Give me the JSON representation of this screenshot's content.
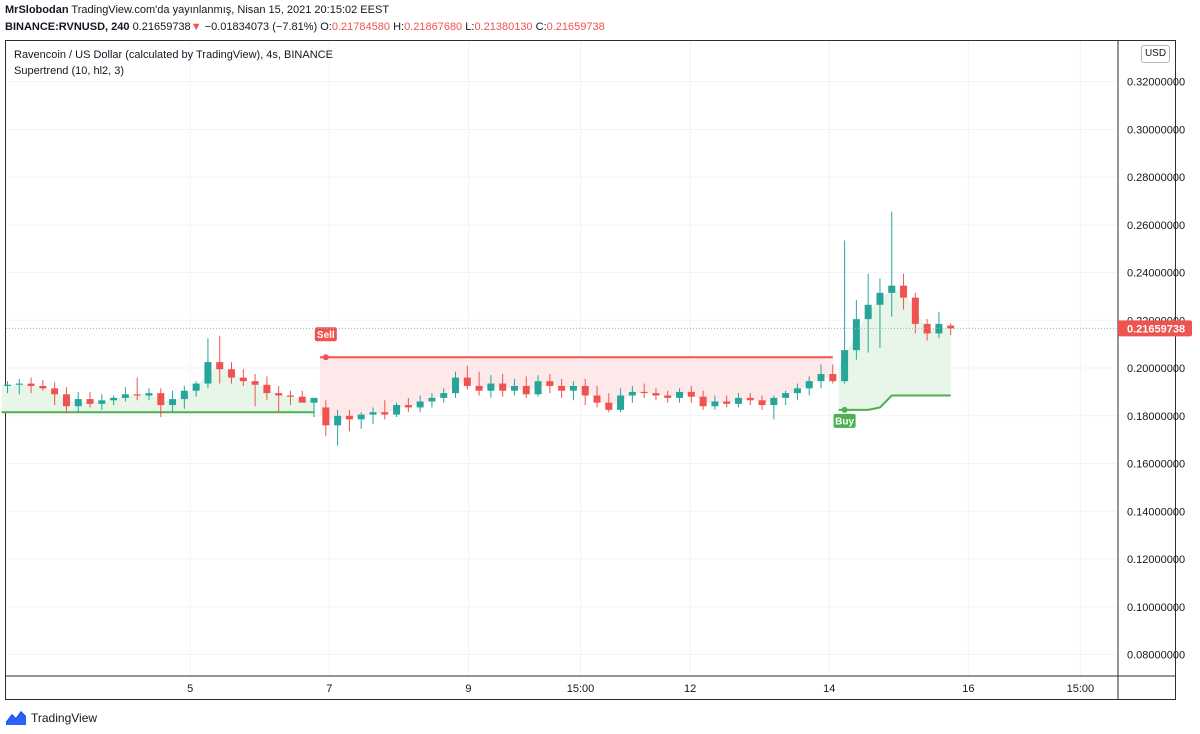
{
  "header": {
    "author": "MrSlobodan",
    "published": "TradingView.com'da yayınlanmış, Nisan 15, 2021 20:15:02 EEST",
    "symbol": "BINANCE:RVNUSD, 240",
    "last": "0.21659738",
    "change_arrow": "▼",
    "change": "−0.01834073 (−7.81%)",
    "o_label": "O:",
    "o_value": "0.21784580",
    "h_label": "H:",
    "h_value": "0.21867680",
    "l_label": "L:",
    "l_value": "0.21380130",
    "c_label": "C:",
    "c_value": "0.21659738"
  },
  "legend": {
    "title": "Ravencoin / US Dollar (calculated by TradingView), 4s, BINANCE",
    "indicator": "Supertrend (10, hl2, 3)"
  },
  "currency": "USD",
  "footer": {
    "brand": "TradingView"
  },
  "colors": {
    "up": "#26a69a",
    "down": "#ef5350",
    "supertrend_up": "#4caf50",
    "supertrend_down": "#ef5350",
    "fill_up": "#e8f5e9",
    "fill_down": "#fde9e9",
    "price_tag": "#ef5350",
    "grid": "#f0f3fa"
  },
  "chart_data": {
    "type": "candlestick",
    "y_axis": {
      "ticks": [
        0.08,
        0.1,
        0.12,
        0.14,
        0.16,
        0.18,
        0.2,
        0.22,
        0.24,
        0.26,
        0.28,
        0.3,
        0.32
      ],
      "tick_labels": [
        "0.08000000",
        "0.10000000",
        "0.12000000",
        "0.14000000",
        "0.16000000",
        "0.18000000",
        "0.20000000",
        "0.22000000",
        "0.24000000",
        "0.26000000",
        "0.28000000",
        "0.30000000",
        "0.32000000"
      ],
      "range": [
        0.071,
        0.337
      ],
      "position": "right"
    },
    "x_axis": {
      "tick_labels": [
        "5",
        "7",
        "9",
        "15:00",
        "12",
        "14",
        "16",
        "15:00"
      ],
      "tick_bar_index": [
        15.5,
        27.3,
        39.1,
        48.6,
        57.9,
        69.7,
        81.5,
        91.0
      ]
    },
    "last_price": 0.21659738,
    "last_price_label": "0.21659738",
    "candles": [
      {
        "o": 0.1925,
        "h": 0.1945,
        "l": 0.1895,
        "c": 0.193
      },
      {
        "o": 0.193,
        "h": 0.1955,
        "l": 0.189,
        "c": 0.1935
      },
      {
        "o": 0.1935,
        "h": 0.196,
        "l": 0.1895,
        "c": 0.1925
      },
      {
        "o": 0.1925,
        "h": 0.195,
        "l": 0.1905,
        "c": 0.1915
      },
      {
        "o": 0.1915,
        "h": 0.194,
        "l": 0.1845,
        "c": 0.189
      },
      {
        "o": 0.189,
        "h": 0.192,
        "l": 0.181,
        "c": 0.184
      },
      {
        "o": 0.184,
        "h": 0.19,
        "l": 0.1815,
        "c": 0.187
      },
      {
        "o": 0.187,
        "h": 0.19,
        "l": 0.1835,
        "c": 0.185
      },
      {
        "o": 0.185,
        "h": 0.189,
        "l": 0.1825,
        "c": 0.1865
      },
      {
        "o": 0.1865,
        "h": 0.1885,
        "l": 0.1845,
        "c": 0.1875
      },
      {
        "o": 0.1875,
        "h": 0.192,
        "l": 0.186,
        "c": 0.189
      },
      {
        "o": 0.189,
        "h": 0.196,
        "l": 0.1865,
        "c": 0.1885
      },
      {
        "o": 0.1885,
        "h": 0.1915,
        "l": 0.1865,
        "c": 0.1895
      },
      {
        "o": 0.1895,
        "h": 0.1915,
        "l": 0.1795,
        "c": 0.1845
      },
      {
        "o": 0.1845,
        "h": 0.1905,
        "l": 0.1815,
        "c": 0.187
      },
      {
        "o": 0.187,
        "h": 0.1925,
        "l": 0.183,
        "c": 0.1905
      },
      {
        "o": 0.1905,
        "h": 0.1945,
        "l": 0.188,
        "c": 0.1935
      },
      {
        "o": 0.1935,
        "h": 0.2125,
        "l": 0.1915,
        "c": 0.2025
      },
      {
        "o": 0.2025,
        "h": 0.2135,
        "l": 0.1935,
        "c": 0.1995
      },
      {
        "o": 0.1995,
        "h": 0.2025,
        "l": 0.1935,
        "c": 0.196
      },
      {
        "o": 0.196,
        "h": 0.1995,
        "l": 0.1925,
        "c": 0.1945
      },
      {
        "o": 0.1945,
        "h": 0.1975,
        "l": 0.184,
        "c": 0.193
      },
      {
        "o": 0.193,
        "h": 0.1965,
        "l": 0.1865,
        "c": 0.1895
      },
      {
        "o": 0.1895,
        "h": 0.1925,
        "l": 0.1815,
        "c": 0.1885
      },
      {
        "o": 0.1885,
        "h": 0.1905,
        "l": 0.1845,
        "c": 0.188
      },
      {
        "o": 0.188,
        "h": 0.1905,
        "l": 0.1855,
        "c": 0.1855
      },
      {
        "o": 0.1855,
        "h": 0.1875,
        "l": 0.1795,
        "c": 0.1875
      },
      {
        "o": 0.1835,
        "h": 0.1865,
        "l": 0.1715,
        "c": 0.176
      },
      {
        "o": 0.176,
        "h": 0.1825,
        "l": 0.1675,
        "c": 0.18
      },
      {
        "o": 0.18,
        "h": 0.1825,
        "l": 0.1735,
        "c": 0.1785
      },
      {
        "o": 0.1785,
        "h": 0.1815,
        "l": 0.1745,
        "c": 0.1805
      },
      {
        "o": 0.1805,
        "h": 0.1835,
        "l": 0.1765,
        "c": 0.1815
      },
      {
        "o": 0.1815,
        "h": 0.1865,
        "l": 0.1785,
        "c": 0.1805
      },
      {
        "o": 0.1805,
        "h": 0.1855,
        "l": 0.1795,
        "c": 0.1845
      },
      {
        "o": 0.1845,
        "h": 0.1875,
        "l": 0.1815,
        "c": 0.1835
      },
      {
        "o": 0.1835,
        "h": 0.1885,
        "l": 0.1815,
        "c": 0.186
      },
      {
        "o": 0.186,
        "h": 0.1895,
        "l": 0.1835,
        "c": 0.1875
      },
      {
        "o": 0.1875,
        "h": 0.1915,
        "l": 0.1855,
        "c": 0.1895
      },
      {
        "o": 0.1895,
        "h": 0.1985,
        "l": 0.1875,
        "c": 0.196
      },
      {
        "o": 0.196,
        "h": 0.201,
        "l": 0.191,
        "c": 0.1925
      },
      {
        "o": 0.1925,
        "h": 0.1985,
        "l": 0.1885,
        "c": 0.1905
      },
      {
        "o": 0.1905,
        "h": 0.197,
        "l": 0.1875,
        "c": 0.1935
      },
      {
        "o": 0.1935,
        "h": 0.1975,
        "l": 0.188,
        "c": 0.1905
      },
      {
        "o": 0.1905,
        "h": 0.1955,
        "l": 0.1885,
        "c": 0.1925
      },
      {
        "o": 0.1925,
        "h": 0.1965,
        "l": 0.1875,
        "c": 0.189
      },
      {
        "o": 0.189,
        "h": 0.197,
        "l": 0.188,
        "c": 0.1945
      },
      {
        "o": 0.1945,
        "h": 0.1975,
        "l": 0.1895,
        "c": 0.1925
      },
      {
        "o": 0.1925,
        "h": 0.1955,
        "l": 0.1875,
        "c": 0.1905
      },
      {
        "o": 0.1905,
        "h": 0.1945,
        "l": 0.1865,
        "c": 0.1925
      },
      {
        "o": 0.1925,
        "h": 0.1955,
        "l": 0.1845,
        "c": 0.1885
      },
      {
        "o": 0.1885,
        "h": 0.1925,
        "l": 0.1835,
        "c": 0.1855
      },
      {
        "o": 0.1855,
        "h": 0.1895,
        "l": 0.1815,
        "c": 0.1825
      },
      {
        "o": 0.1825,
        "h": 0.1915,
        "l": 0.1815,
        "c": 0.1885
      },
      {
        "o": 0.1885,
        "h": 0.1925,
        "l": 0.1855,
        "c": 0.19
      },
      {
        "o": 0.19,
        "h": 0.1935,
        "l": 0.1875,
        "c": 0.1895
      },
      {
        "o": 0.1895,
        "h": 0.1915,
        "l": 0.1865,
        "c": 0.1885
      },
      {
        "o": 0.1885,
        "h": 0.1905,
        "l": 0.1855,
        "c": 0.1875
      },
      {
        "o": 0.1875,
        "h": 0.1915,
        "l": 0.1855,
        "c": 0.19
      },
      {
        "o": 0.19,
        "h": 0.1925,
        "l": 0.1855,
        "c": 0.188
      },
      {
        "o": 0.188,
        "h": 0.1905,
        "l": 0.1825,
        "c": 0.184
      },
      {
        "o": 0.184,
        "h": 0.1885,
        "l": 0.1825,
        "c": 0.186
      },
      {
        "o": 0.186,
        "h": 0.1885,
        "l": 0.1835,
        "c": 0.185
      },
      {
        "o": 0.185,
        "h": 0.1895,
        "l": 0.1835,
        "c": 0.1875
      },
      {
        "o": 0.1875,
        "h": 0.1895,
        "l": 0.1845,
        "c": 0.1865
      },
      {
        "o": 0.1865,
        "h": 0.1885,
        "l": 0.1825,
        "c": 0.1845
      },
      {
        "o": 0.1845,
        "h": 0.1885,
        "l": 0.1785,
        "c": 0.1875
      },
      {
        "o": 0.1875,
        "h": 0.1905,
        "l": 0.1845,
        "c": 0.1895
      },
      {
        "o": 0.1895,
        "h": 0.1935,
        "l": 0.1865,
        "c": 0.1915
      },
      {
        "o": 0.1915,
        "h": 0.1965,
        "l": 0.1885,
        "c": 0.1945
      },
      {
        "o": 0.1945,
        "h": 0.2015,
        "l": 0.1915,
        "c": 0.1975
      },
      {
        "o": 0.1975,
        "h": 0.2015,
        "l": 0.1935,
        "c": 0.1945
      },
      {
        "o": 0.1945,
        "h": 0.2535,
        "l": 0.1935,
        "c": 0.2075
      },
      {
        "o": 0.2075,
        "h": 0.2285,
        "l": 0.2035,
        "c": 0.2205
      },
      {
        "o": 0.2205,
        "h": 0.2395,
        "l": 0.2065,
        "c": 0.2265
      },
      {
        "o": 0.2265,
        "h": 0.2375,
        "l": 0.2085,
        "c": 0.2315
      },
      {
        "o": 0.2315,
        "h": 0.2655,
        "l": 0.2215,
        "c": 0.2345
      },
      {
        "o": 0.2345,
        "h": 0.2395,
        "l": 0.2245,
        "c": 0.2295
      },
      {
        "o": 0.2295,
        "h": 0.2315,
        "l": 0.2145,
        "c": 0.2185
      },
      {
        "o": 0.2185,
        "h": 0.2205,
        "l": 0.2115,
        "c": 0.2145
      },
      {
        "o": 0.2145,
        "h": 0.2235,
        "l": 0.2125,
        "c": 0.2185
      },
      {
        "o": 0.2178,
        "h": 0.2187,
        "l": 0.2138,
        "c": 0.2166
      }
    ],
    "supertrend": {
      "segments": [
        {
          "direction": "up",
          "from_bar": 0,
          "to_bar": 26,
          "values": [
            0.1815
          ]
        },
        {
          "direction": "down",
          "from_bar": 27,
          "to_bar": 70,
          "values": [
            0.2045
          ]
        },
        {
          "direction": "up",
          "from_bar": 71,
          "to_bar": 80,
          "values": [
            0.1825,
            0.1825,
            0.1825,
            0.1835,
            0.1885,
            0.1885,
            0.1885,
            0.1885,
            0.1885,
            0.1885
          ]
        }
      ]
    },
    "signals": [
      {
        "type": "sell",
        "bar": 27,
        "label": "Sell"
      },
      {
        "type": "buy",
        "bar": 71,
        "label": "Buy"
      }
    ]
  }
}
